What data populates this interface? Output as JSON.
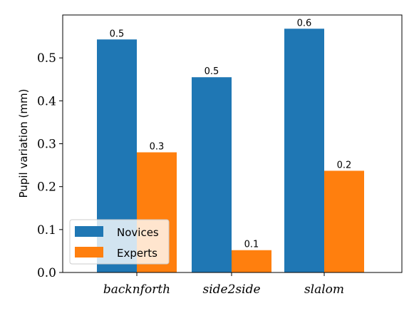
{
  "chart_data": {
    "type": "bar",
    "categories": [
      "backnforth",
      "side2side",
      "slalom"
    ],
    "series": [
      {
        "name": "Novices",
        "values": [
          0.543,
          0.455,
          0.568
        ],
        "labels": [
          "0.5",
          "0.5",
          "0.6"
        ],
        "color": "#1f77b4"
      },
      {
        "name": "Experts",
        "values": [
          0.28,
          0.052,
          0.237
        ],
        "labels": [
          "0.3",
          "0.1",
          "0.2"
        ],
        "color": "#ff7f0e"
      }
    ],
    "ylabel": "Pupil variation (mm)",
    "xlabel": "",
    "ylim": [
      0,
      0.6
    ],
    "yticks": [
      "0.0",
      "0.1",
      "0.2",
      "0.3",
      "0.4",
      "0.5"
    ],
    "grid": false,
    "legend_position": "lower-left"
  }
}
